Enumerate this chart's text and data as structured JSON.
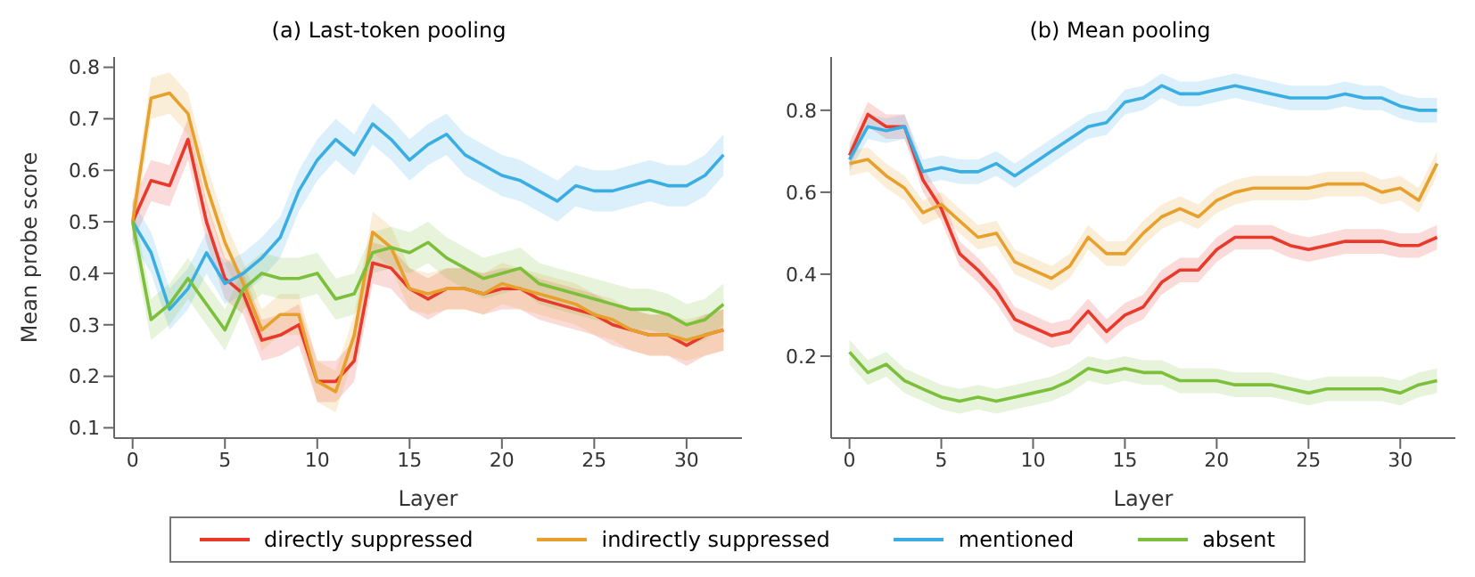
{
  "chart_data": [
    {
      "type": "line",
      "title": "(a) Last-token pooling",
      "xlabel": "Layer",
      "ylabel": "Mean probe score",
      "x": [
        0,
        1,
        2,
        3,
        4,
        5,
        6,
        7,
        8,
        9,
        10,
        11,
        12,
        13,
        14,
        15,
        16,
        17,
        18,
        19,
        20,
        21,
        22,
        23,
        24,
        25,
        26,
        27,
        28,
        29,
        30,
        31,
        32
      ],
      "xlim": [
        -1,
        33
      ],
      "xticks": [
        0,
        5,
        10,
        15,
        20,
        25,
        30
      ],
      "ylim": [
        0.08,
        0.82
      ],
      "yticks": [
        0.1,
        0.2,
        0.3,
        0.4,
        0.5,
        0.6,
        0.7,
        0.8
      ],
      "grid": false,
      "legend": "bottom",
      "marker": "none",
      "line_style": "solid",
      "series": [
        {
          "name": "directly suppressed",
          "color": "#e8392a",
          "values": [
            0.5,
            0.58,
            0.57,
            0.66,
            0.5,
            0.39,
            0.36,
            0.27,
            0.28,
            0.3,
            0.19,
            0.19,
            0.23,
            0.42,
            0.41,
            0.37,
            0.35,
            0.37,
            0.37,
            0.36,
            0.37,
            0.37,
            0.35,
            0.34,
            0.33,
            0.32,
            0.3,
            0.29,
            0.28,
            0.28,
            0.26,
            0.28,
            0.29
          ],
          "lower": [
            0.46,
            0.54,
            0.53,
            0.62,
            0.46,
            0.35,
            0.32,
            0.23,
            0.24,
            0.26,
            0.15,
            0.15,
            0.19,
            0.38,
            0.37,
            0.33,
            0.31,
            0.33,
            0.33,
            0.32,
            0.33,
            0.33,
            0.31,
            0.3,
            0.29,
            0.28,
            0.26,
            0.25,
            0.24,
            0.24,
            0.22,
            0.24,
            0.25
          ],
          "upper": [
            0.54,
            0.62,
            0.61,
            0.7,
            0.54,
            0.43,
            0.4,
            0.31,
            0.32,
            0.34,
            0.23,
            0.23,
            0.27,
            0.46,
            0.45,
            0.41,
            0.39,
            0.41,
            0.41,
            0.4,
            0.41,
            0.41,
            0.39,
            0.38,
            0.37,
            0.36,
            0.34,
            0.33,
            0.32,
            0.32,
            0.3,
            0.32,
            0.33
          ]
        },
        {
          "name": "indirectly suppressed",
          "color": "#e8a02c",
          "values": [
            0.5,
            0.74,
            0.75,
            0.71,
            0.57,
            0.46,
            0.38,
            0.29,
            0.32,
            0.32,
            0.19,
            0.17,
            0.28,
            0.48,
            0.45,
            0.37,
            0.36,
            0.37,
            0.37,
            0.36,
            0.38,
            0.37,
            0.36,
            0.35,
            0.34,
            0.32,
            0.31,
            0.29,
            0.28,
            0.28,
            0.27,
            0.28,
            0.29
          ],
          "lower": [
            0.46,
            0.7,
            0.71,
            0.67,
            0.53,
            0.42,
            0.34,
            0.25,
            0.28,
            0.28,
            0.15,
            0.13,
            0.24,
            0.44,
            0.41,
            0.33,
            0.32,
            0.33,
            0.33,
            0.32,
            0.34,
            0.33,
            0.32,
            0.31,
            0.3,
            0.28,
            0.27,
            0.25,
            0.24,
            0.24,
            0.23,
            0.24,
            0.25
          ],
          "upper": [
            0.54,
            0.78,
            0.79,
            0.75,
            0.61,
            0.5,
            0.42,
            0.33,
            0.36,
            0.36,
            0.23,
            0.21,
            0.32,
            0.52,
            0.49,
            0.41,
            0.4,
            0.41,
            0.41,
            0.4,
            0.42,
            0.41,
            0.4,
            0.39,
            0.38,
            0.36,
            0.35,
            0.33,
            0.32,
            0.32,
            0.31,
            0.32,
            0.33
          ]
        },
        {
          "name": "mentioned",
          "color": "#3aaee2",
          "values": [
            0.5,
            0.44,
            0.33,
            0.37,
            0.44,
            0.38,
            0.4,
            0.43,
            0.47,
            0.56,
            0.62,
            0.66,
            0.63,
            0.69,
            0.66,
            0.62,
            0.65,
            0.67,
            0.63,
            0.61,
            0.59,
            0.58,
            0.56,
            0.54,
            0.57,
            0.56,
            0.56,
            0.57,
            0.58,
            0.57,
            0.57,
            0.59,
            0.63
          ],
          "lower": [
            0.46,
            0.4,
            0.29,
            0.33,
            0.4,
            0.34,
            0.36,
            0.39,
            0.43,
            0.52,
            0.58,
            0.62,
            0.59,
            0.65,
            0.62,
            0.58,
            0.61,
            0.63,
            0.59,
            0.57,
            0.55,
            0.54,
            0.52,
            0.5,
            0.53,
            0.52,
            0.52,
            0.53,
            0.54,
            0.53,
            0.53,
            0.55,
            0.59
          ],
          "upper": [
            0.54,
            0.48,
            0.37,
            0.41,
            0.48,
            0.42,
            0.44,
            0.47,
            0.51,
            0.6,
            0.66,
            0.7,
            0.67,
            0.73,
            0.7,
            0.66,
            0.69,
            0.71,
            0.67,
            0.65,
            0.63,
            0.62,
            0.6,
            0.58,
            0.61,
            0.6,
            0.6,
            0.61,
            0.62,
            0.61,
            0.61,
            0.63,
            0.67
          ]
        },
        {
          "name": "absent",
          "color": "#7bbf3a",
          "values": [
            0.5,
            0.31,
            0.34,
            0.39,
            0.34,
            0.29,
            0.37,
            0.4,
            0.39,
            0.39,
            0.4,
            0.35,
            0.36,
            0.44,
            0.45,
            0.44,
            0.46,
            0.43,
            0.41,
            0.39,
            0.4,
            0.41,
            0.38,
            0.37,
            0.36,
            0.35,
            0.34,
            0.33,
            0.33,
            0.32,
            0.3,
            0.31,
            0.34
          ],
          "lower": [
            0.46,
            0.27,
            0.3,
            0.35,
            0.3,
            0.25,
            0.33,
            0.36,
            0.35,
            0.35,
            0.36,
            0.31,
            0.32,
            0.4,
            0.41,
            0.4,
            0.42,
            0.39,
            0.37,
            0.35,
            0.36,
            0.37,
            0.34,
            0.33,
            0.32,
            0.31,
            0.3,
            0.29,
            0.29,
            0.28,
            0.26,
            0.27,
            0.3
          ],
          "upper": [
            0.54,
            0.35,
            0.38,
            0.43,
            0.38,
            0.33,
            0.41,
            0.44,
            0.43,
            0.43,
            0.44,
            0.39,
            0.4,
            0.48,
            0.49,
            0.48,
            0.5,
            0.47,
            0.45,
            0.43,
            0.44,
            0.45,
            0.42,
            0.41,
            0.4,
            0.39,
            0.38,
            0.37,
            0.37,
            0.36,
            0.34,
            0.35,
            0.38
          ]
        }
      ]
    },
    {
      "type": "line",
      "title": "(b) Mean pooling",
      "xlabel": "Layer",
      "x": [
        0,
        1,
        2,
        3,
        4,
        5,
        6,
        7,
        8,
        9,
        10,
        11,
        12,
        13,
        14,
        15,
        16,
        17,
        18,
        19,
        20,
        21,
        22,
        23,
        24,
        25,
        26,
        27,
        28,
        29,
        30,
        31,
        32
      ],
      "xlim": [
        -1,
        33
      ],
      "xticks": [
        0,
        5,
        10,
        15,
        20,
        25,
        30
      ],
      "ylim": [
        0,
        0.93
      ],
      "yticks": [
        0.2,
        0.4,
        0.6,
        0.8
      ],
      "grid": false,
      "marker": "none",
      "line_style": "solid",
      "series": [
        {
          "color": "#e8392a",
          "values": [
            0.69,
            0.79,
            0.76,
            0.76,
            0.63,
            0.56,
            0.45,
            0.41,
            0.36,
            0.29,
            0.27,
            0.25,
            0.26,
            0.31,
            0.26,
            0.3,
            0.32,
            0.38,
            0.41,
            0.41,
            0.46,
            0.49,
            0.49,
            0.49,
            0.47,
            0.46,
            0.47,
            0.48,
            0.48,
            0.48,
            0.47,
            0.47,
            0.49
          ],
          "lower": [
            0.66,
            0.76,
            0.73,
            0.73,
            0.6,
            0.53,
            0.42,
            0.38,
            0.33,
            0.26,
            0.24,
            0.22,
            0.23,
            0.28,
            0.23,
            0.27,
            0.29,
            0.35,
            0.38,
            0.38,
            0.43,
            0.46,
            0.46,
            0.46,
            0.44,
            0.43,
            0.44,
            0.45,
            0.45,
            0.45,
            0.44,
            0.44,
            0.46
          ],
          "upper": [
            0.72,
            0.82,
            0.79,
            0.79,
            0.66,
            0.59,
            0.48,
            0.44,
            0.39,
            0.32,
            0.3,
            0.28,
            0.29,
            0.34,
            0.29,
            0.33,
            0.35,
            0.41,
            0.44,
            0.44,
            0.49,
            0.52,
            0.52,
            0.52,
            0.5,
            0.49,
            0.5,
            0.51,
            0.51,
            0.51,
            0.5,
            0.5,
            0.52
          ]
        },
        {
          "color": "#e8a02c",
          "values": [
            0.67,
            0.68,
            0.64,
            0.61,
            0.55,
            0.57,
            0.53,
            0.49,
            0.5,
            0.43,
            0.41,
            0.39,
            0.42,
            0.49,
            0.45,
            0.45,
            0.5,
            0.54,
            0.56,
            0.54,
            0.58,
            0.6,
            0.61,
            0.61,
            0.61,
            0.61,
            0.62,
            0.62,
            0.62,
            0.6,
            0.61,
            0.58,
            0.67
          ],
          "lower": [
            0.64,
            0.65,
            0.61,
            0.58,
            0.52,
            0.54,
            0.5,
            0.46,
            0.47,
            0.4,
            0.38,
            0.36,
            0.39,
            0.46,
            0.42,
            0.42,
            0.47,
            0.51,
            0.53,
            0.51,
            0.55,
            0.57,
            0.58,
            0.58,
            0.58,
            0.58,
            0.59,
            0.59,
            0.59,
            0.57,
            0.58,
            0.55,
            0.64
          ],
          "upper": [
            0.7,
            0.71,
            0.67,
            0.64,
            0.58,
            0.6,
            0.56,
            0.52,
            0.53,
            0.46,
            0.44,
            0.42,
            0.45,
            0.52,
            0.48,
            0.48,
            0.53,
            0.57,
            0.59,
            0.57,
            0.61,
            0.63,
            0.64,
            0.64,
            0.64,
            0.64,
            0.65,
            0.65,
            0.65,
            0.63,
            0.64,
            0.61,
            0.7
          ]
        },
        {
          "color": "#3aaee2",
          "values": [
            0.68,
            0.76,
            0.75,
            0.76,
            0.65,
            0.66,
            0.65,
            0.65,
            0.67,
            0.64,
            0.67,
            0.7,
            0.73,
            0.76,
            0.77,
            0.82,
            0.83,
            0.86,
            0.84,
            0.84,
            0.85,
            0.86,
            0.85,
            0.84,
            0.83,
            0.83,
            0.83,
            0.84,
            0.83,
            0.83,
            0.81,
            0.8,
            0.8
          ],
          "lower": [
            0.65,
            0.73,
            0.72,
            0.73,
            0.62,
            0.63,
            0.62,
            0.62,
            0.64,
            0.61,
            0.64,
            0.67,
            0.7,
            0.73,
            0.74,
            0.79,
            0.8,
            0.83,
            0.81,
            0.81,
            0.82,
            0.83,
            0.82,
            0.81,
            0.8,
            0.8,
            0.8,
            0.81,
            0.8,
            0.8,
            0.78,
            0.77,
            0.77
          ],
          "upper": [
            0.71,
            0.79,
            0.78,
            0.79,
            0.68,
            0.69,
            0.68,
            0.68,
            0.7,
            0.67,
            0.7,
            0.73,
            0.76,
            0.79,
            0.8,
            0.85,
            0.86,
            0.89,
            0.87,
            0.87,
            0.88,
            0.89,
            0.88,
            0.87,
            0.86,
            0.86,
            0.86,
            0.87,
            0.86,
            0.86,
            0.84,
            0.83,
            0.83
          ]
        },
        {
          "color": "#7bbf3a",
          "values": [
            0.21,
            0.16,
            0.18,
            0.14,
            0.12,
            0.1,
            0.09,
            0.1,
            0.09,
            0.1,
            0.11,
            0.12,
            0.14,
            0.17,
            0.16,
            0.17,
            0.16,
            0.16,
            0.14,
            0.14,
            0.14,
            0.13,
            0.13,
            0.13,
            0.12,
            0.11,
            0.12,
            0.12,
            0.12,
            0.12,
            0.11,
            0.13,
            0.14
          ],
          "lower": [
            0.18,
            0.13,
            0.15,
            0.11,
            0.09,
            0.07,
            0.06,
            0.07,
            0.06,
            0.07,
            0.08,
            0.09,
            0.11,
            0.14,
            0.13,
            0.14,
            0.13,
            0.13,
            0.11,
            0.11,
            0.11,
            0.1,
            0.1,
            0.1,
            0.09,
            0.08,
            0.09,
            0.09,
            0.09,
            0.09,
            0.08,
            0.1,
            0.11
          ],
          "upper": [
            0.24,
            0.19,
            0.21,
            0.17,
            0.15,
            0.13,
            0.12,
            0.13,
            0.12,
            0.13,
            0.14,
            0.15,
            0.17,
            0.2,
            0.19,
            0.2,
            0.19,
            0.19,
            0.17,
            0.17,
            0.17,
            0.16,
            0.16,
            0.16,
            0.15,
            0.14,
            0.15,
            0.15,
            0.15,
            0.15,
            0.14,
            0.16,
            0.17
          ]
        }
      ]
    }
  ]
}
